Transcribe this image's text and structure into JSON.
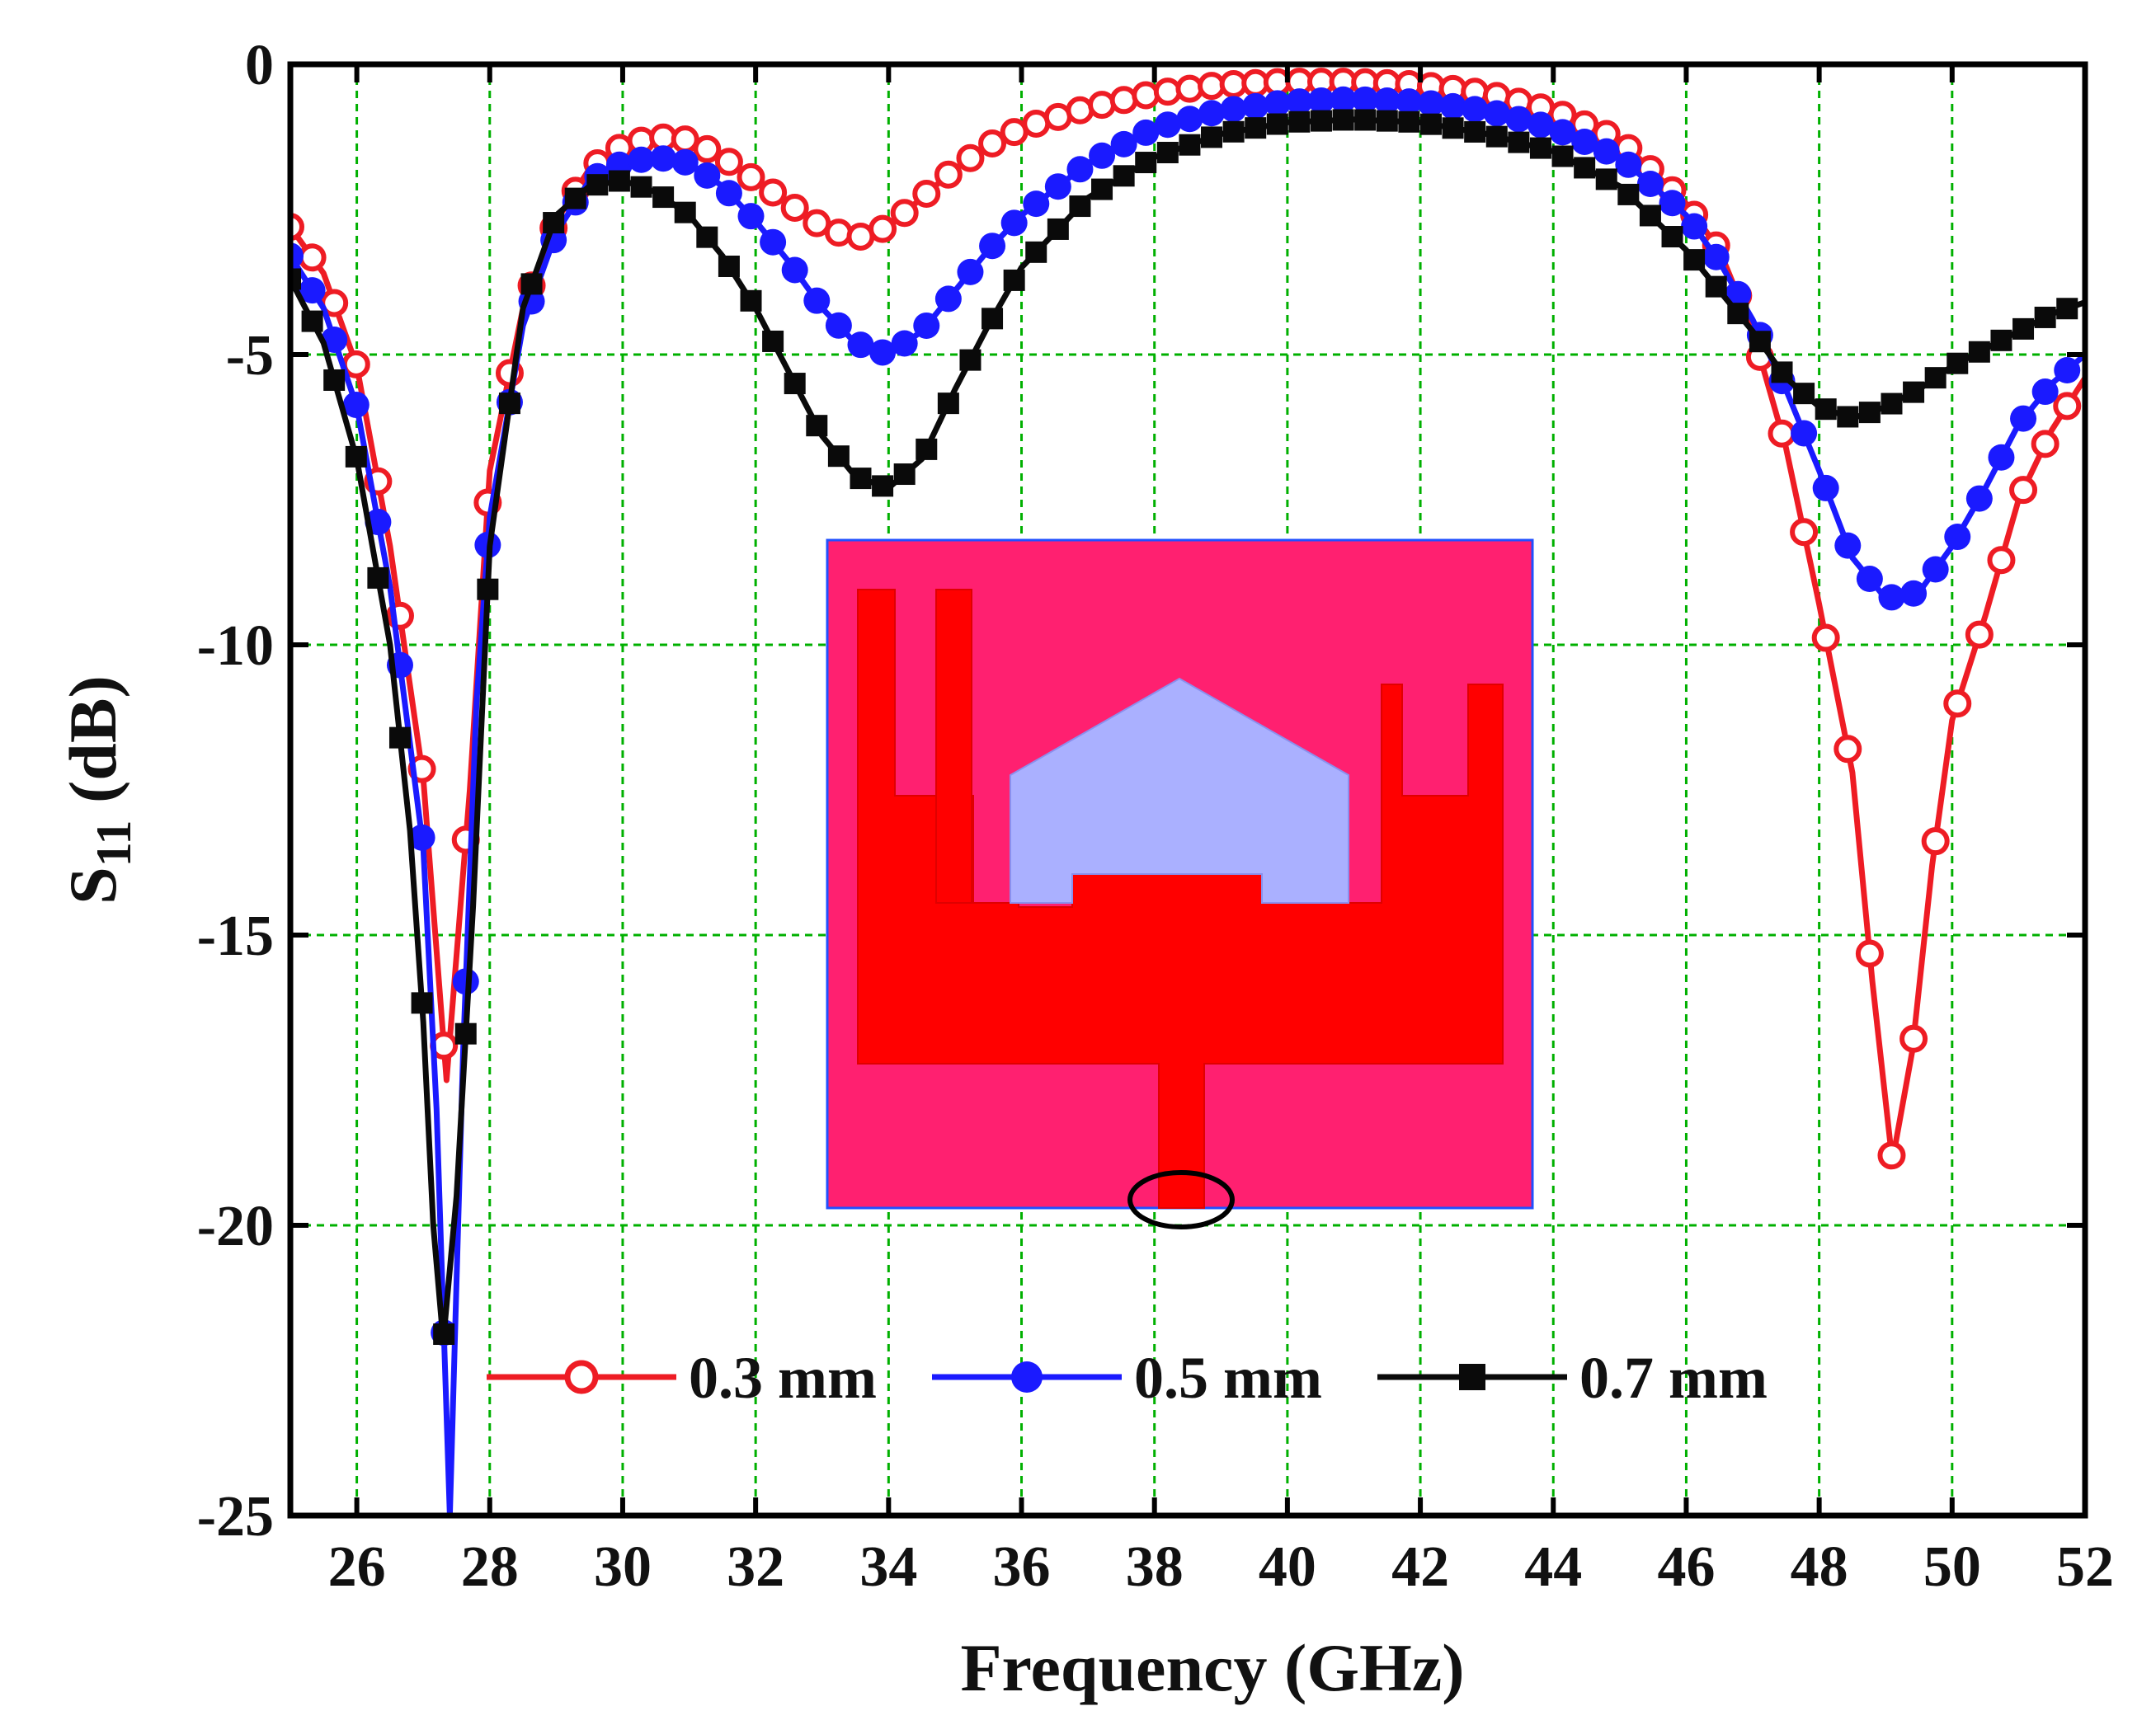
{
  "chart_data": {
    "type": "line",
    "title": "",
    "xlabel": "Frequency (GHz)",
    "ylabel_main": "S",
    "ylabel_sub": "11",
    "ylabel_rest": " (dB)",
    "xlim": [
      25,
      52
    ],
    "ylim": [
      -25,
      0
    ],
    "xticks": [
      26,
      28,
      30,
      32,
      34,
      36,
      38,
      40,
      42,
      44,
      46,
      48,
      50,
      52
    ],
    "yticks": [
      0,
      -5,
      -10,
      -15,
      -20,
      -25
    ],
    "grid": true,
    "legend_position": "bottom-center",
    "series": [
      {
        "name": "0.3 mm",
        "color": "#ee1c24",
        "marker": "open-circle",
        "x": [
          25.0,
          25.5,
          26.0,
          26.5,
          27.0,
          27.35,
          27.7,
          28.0,
          28.5,
          29.0,
          29.5,
          30.0,
          30.5,
          31.0,
          31.5,
          32.0,
          32.5,
          33.0,
          33.5,
          34.0,
          34.5,
          35.0,
          35.5,
          36.0,
          37.0,
          38.0,
          39.0,
          40.0,
          41.0,
          42.0,
          43.0,
          44.0,
          45.0,
          46.0,
          46.5,
          47.0,
          47.5,
          48.0,
          48.5,
          48.8,
          49.1,
          49.4,
          49.7,
          50.0,
          50.5,
          51.0,
          51.5,
          52.0
        ],
        "y": [
          -2.8,
          -3.6,
          -5.2,
          -8.3,
          -12.3,
          -17.5,
          -12.5,
          -7.0,
          -4.2,
          -2.7,
          -1.8,
          -1.4,
          -1.25,
          -1.3,
          -1.6,
          -2.0,
          -2.4,
          -2.8,
          -3.0,
          -2.8,
          -2.3,
          -1.8,
          -1.4,
          -1.1,
          -0.75,
          -0.5,
          -0.35,
          -0.3,
          -0.3,
          -0.35,
          -0.5,
          -0.8,
          -1.3,
          -2.4,
          -3.2,
          -4.6,
          -6.6,
          -9.3,
          -12.2,
          -15.8,
          -18.9,
          -17.0,
          -13.8,
          -11.3,
          -9.5,
          -7.5,
          -6.3,
          -5.4
        ]
      },
      {
        "name": "0.5 mm",
        "color": "#1a1aff",
        "marker": "filled-circle",
        "x": [
          25.0,
          25.5,
          26.0,
          26.5,
          27.0,
          27.2,
          27.4,
          27.6,
          27.8,
          28.0,
          28.5,
          29.0,
          29.5,
          30.0,
          30.5,
          31.0,
          31.5,
          32.0,
          32.5,
          33.0,
          33.5,
          34.0,
          34.5,
          35.0,
          35.5,
          36.0,
          37.0,
          38.0,
          39.0,
          40.0,
          41.0,
          42.0,
          43.0,
          44.0,
          45.0,
          46.0,
          46.5,
          47.0,
          47.5,
          48.0,
          48.5,
          49.0,
          49.5,
          50.0,
          50.5,
          51.0,
          51.5,
          52.0
        ],
        "y": [
          -3.3,
          -4.2,
          -5.9,
          -9.0,
          -13.5,
          -18.0,
          -25.0,
          -17.0,
          -11.0,
          -7.8,
          -4.5,
          -2.9,
          -2.0,
          -1.7,
          -1.6,
          -1.7,
          -2.1,
          -2.7,
          -3.4,
          -4.2,
          -4.8,
          -5.0,
          -4.6,
          -3.9,
          -3.2,
          -2.6,
          -1.7,
          -1.1,
          -0.8,
          -0.65,
          -0.6,
          -0.65,
          -0.8,
          -1.1,
          -1.6,
          -2.6,
          -3.4,
          -4.4,
          -5.6,
          -7.0,
          -8.5,
          -9.2,
          -9.1,
          -8.3,
          -7.3,
          -6.2,
          -5.5,
          -5.0
        ]
      },
      {
        "name": "0.7 mm",
        "color": "#0a0a0a",
        "marker": "filled-square",
        "x": [
          25.0,
          25.5,
          26.0,
          26.5,
          26.8,
          27.0,
          27.15,
          27.3,
          27.5,
          27.75,
          28.0,
          28.5,
          29.0,
          29.5,
          30.0,
          30.5,
          31.0,
          31.5,
          32.0,
          32.5,
          33.0,
          33.5,
          34.0,
          34.5,
          35.0,
          35.5,
          36.0,
          37.0,
          38.0,
          39.0,
          40.0,
          41.0,
          42.0,
          43.0,
          44.0,
          45.0,
          46.0,
          46.5,
          47.0,
          47.5,
          48.0,
          48.5,
          49.0,
          49.5,
          50.0,
          50.5,
          51.0,
          51.5,
          52.0
        ],
        "y": [
          -3.7,
          -4.8,
          -6.8,
          -10.0,
          -13.2,
          -16.5,
          -20.0,
          -22.0,
          -19.5,
          -14.5,
          -8.3,
          -4.2,
          -2.6,
          -2.1,
          -2.0,
          -2.2,
          -2.6,
          -3.3,
          -4.2,
          -5.3,
          -6.4,
          -7.1,
          -7.3,
          -6.8,
          -5.6,
          -4.5,
          -3.5,
          -2.3,
          -1.6,
          -1.2,
          -1.0,
          -0.95,
          -1.0,
          -1.2,
          -1.5,
          -2.1,
          -3.2,
          -3.9,
          -4.6,
          -5.4,
          -5.9,
          -6.1,
          -5.9,
          -5.6,
          -5.2,
          -4.9,
          -4.6,
          -4.3,
          -4.1
        ]
      }
    ],
    "inset": {
      "description_hidden": true,
      "substrate_color": "#ff2070",
      "patch_color": "#ff0000",
      "slot_color": "#aab0ff",
      "border_color": "#2050ff"
    }
  }
}
